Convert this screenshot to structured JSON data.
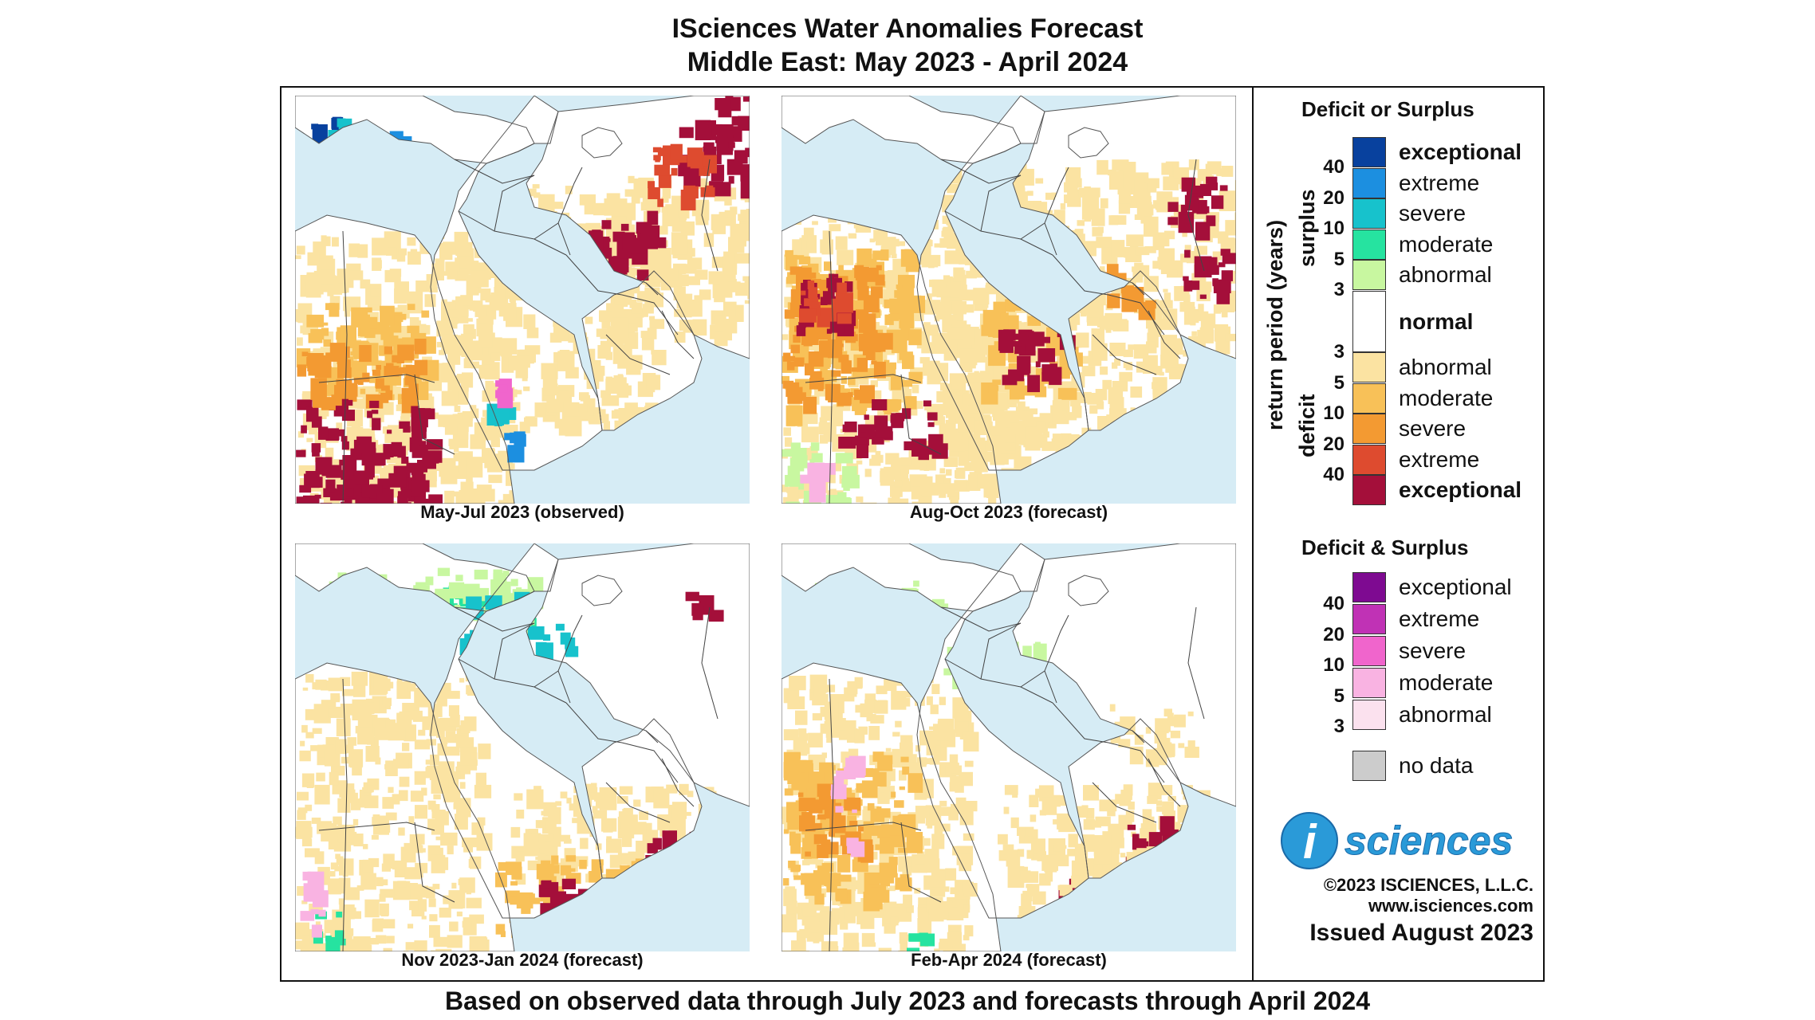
{
  "title": {
    "line1": "ISciences Water Anomalies Forecast",
    "line2": "Middle East: May 2023 - April 2024"
  },
  "panels": [
    {
      "caption": "May-Jul 2023 (observed)",
      "theme": "observed"
    },
    {
      "caption": "Aug-Oct 2023 (forecast)",
      "theme": "autumn"
    },
    {
      "caption": "Nov 2023-Jan 2024 (forecast)",
      "theme": "winter"
    },
    {
      "caption": "Feb-Apr 2024 (forecast)",
      "theme": "spring"
    }
  ],
  "legend": {
    "heading1": "Deficit or Surplus",
    "axis_label": "return period (years)",
    "surplus_label": "surplus",
    "deficit_label": "deficit",
    "surplus_classes": [
      {
        "label": "exceptional",
        "color": "#08419e",
        "bold": true
      },
      {
        "label": "extreme",
        "color": "#1c8fe0",
        "bold": false
      },
      {
        "label": "severe",
        "color": "#17c2cc",
        "bold": false
      },
      {
        "label": "moderate",
        "color": "#26e3a0",
        "bold": false
      },
      {
        "label": "abnormal",
        "color": "#c8f7a0",
        "bold": false
      }
    ],
    "surplus_numbers": [
      "40",
      "20",
      "10",
      "5",
      "3"
    ],
    "normal": {
      "label": "normal",
      "color": "#ffffff"
    },
    "deficit_classes": [
      {
        "label": "abnormal",
        "color": "#fbe3a2",
        "bold": false
      },
      {
        "label": "moderate",
        "color": "#f8c158",
        "bold": false
      },
      {
        "label": "severe",
        "color": "#f39a32",
        "bold": false
      },
      {
        "label": "extreme",
        "color": "#de4b2f",
        "bold": false
      },
      {
        "label": "exceptional",
        "color": "#a40f3a",
        "bold": true
      }
    ],
    "deficit_numbers": [
      "3",
      "5",
      "10",
      "20",
      "40"
    ],
    "heading2": "Deficit & Surplus",
    "both_classes": [
      {
        "label": "exceptional",
        "color": "#7e0a91"
      },
      {
        "label": "extreme",
        "color": "#c032b5"
      },
      {
        "label": "severe",
        "color": "#f065cc"
      },
      {
        "label": "moderate",
        "color": "#f9b3e2"
      },
      {
        "label": "abnormal",
        "color": "#fbe1ee"
      }
    ],
    "both_numbers": [
      "40",
      "20",
      "10",
      "5",
      "3"
    ],
    "no_data": {
      "label": "no data",
      "color": "#cccccc"
    },
    "logo_text": "sciences",
    "logo_letter": "i",
    "copyright": "©2023 ISCIENCES, L.L.C.",
    "website": "www.isciences.com",
    "issued": "Issued August 2023"
  },
  "footer": "Based on observed data through July 2023 and forecasts through April 2024"
}
